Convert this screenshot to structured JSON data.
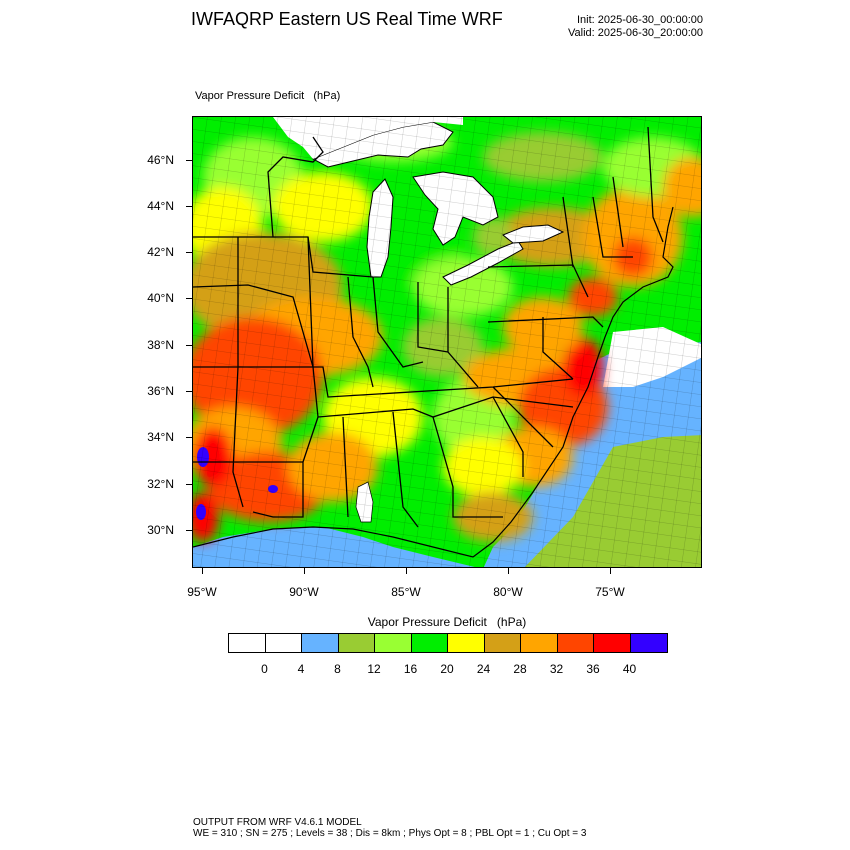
{
  "header": {
    "title": "IWFAQRP Eastern US Real Time WRF",
    "init": "Init: 2025-06-30_00:00:00",
    "valid": "Valid: 2025-06-30_20:00:00"
  },
  "map": {
    "field_label": "Vapor Pressure Deficit   (hPa)",
    "lat_labels": [
      "46°N",
      "44°N",
      "42°N",
      "40°N",
      "38°N",
      "36°N",
      "34°N",
      "32°N",
      "30°N"
    ],
    "lon_labels": [
      "95°W",
      "90°W",
      "85°W",
      "80°W",
      "75°W"
    ],
    "extent": {
      "lon_min": -95.5,
      "lon_max": -70.5,
      "lat_min": 28.4,
      "lat_max": 47.9
    }
  },
  "legend": {
    "title": "Vapor Pressure Deficit   (hPa)",
    "colors": [
      "#ffffff",
      "#ffffff",
      "#66b3ff",
      "#99cc33",
      "#99ff33",
      "#00ee00",
      "#ffff00",
      "#d4a017",
      "#ffa500",
      "#ff4500",
      "#ff0000",
      "#3300ff"
    ],
    "ticks": [
      "0",
      "4",
      "8",
      "12",
      "16",
      "20",
      "24",
      "28",
      "32",
      "36",
      "40"
    ]
  },
  "footer": {
    "line1": "OUTPUT FROM WRF V4.6.1 MODEL",
    "line2": "WE = 310 ; SN = 275 ; Levels = 38 ; Dis = 8km ; Phys Opt = 8 ; PBL Opt = 1 ; Cu Opt = 3"
  }
}
